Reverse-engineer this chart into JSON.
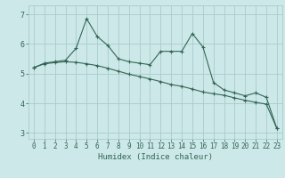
{
  "x": [
    0,
    1,
    2,
    3,
    4,
    5,
    6,
    7,
    8,
    9,
    10,
    11,
    12,
    13,
    14,
    15,
    16,
    17,
    18,
    19,
    20,
    21,
    22,
    23
  ],
  "line1": [
    5.2,
    5.35,
    5.4,
    5.45,
    5.85,
    6.85,
    6.25,
    5.95,
    5.5,
    5.4,
    5.35,
    5.3,
    5.75,
    5.75,
    5.75,
    6.35,
    5.9,
    4.7,
    4.45,
    4.35,
    4.25,
    4.35,
    4.2,
    3.15
  ],
  "line2": [
    5.2,
    5.33,
    5.37,
    5.4,
    5.38,
    5.33,
    5.27,
    5.18,
    5.08,
    4.98,
    4.9,
    4.82,
    4.73,
    4.63,
    4.57,
    4.48,
    4.38,
    4.32,
    4.27,
    4.18,
    4.1,
    4.03,
    3.97,
    3.15
  ],
  "bg_color": "#cce8e8",
  "grid_color": "#aacccc",
  "line_color": "#336655",
  "xlabel": "Humidex (Indice chaleur)",
  "ylim": [
    2.8,
    7.3
  ],
  "xlim": [
    -0.5,
    23.5
  ],
  "yticks": [
    3,
    4,
    5,
    6,
    7
  ],
  "xticks": [
    0,
    1,
    2,
    3,
    4,
    5,
    6,
    7,
    8,
    9,
    10,
    11,
    12,
    13,
    14,
    15,
    16,
    17,
    18,
    19,
    20,
    21,
    22,
    23
  ],
  "xlabel_fontsize": 6.5,
  "tick_fontsize": 5.5,
  "linewidth": 0.8,
  "marker_size": 3.5
}
